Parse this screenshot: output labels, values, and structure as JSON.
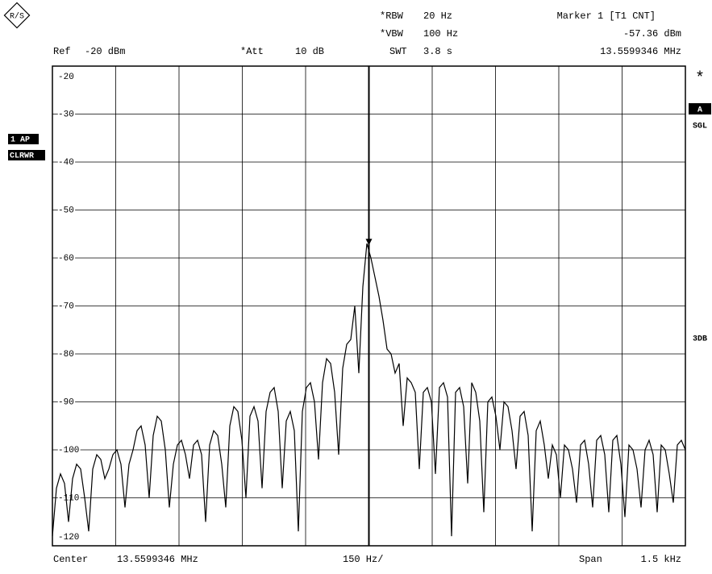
{
  "chart_data": {
    "type": "line",
    "header": {
      "rbw_label": "*RBW",
      "rbw": "20 Hz",
      "vbw_label": "*VBW",
      "vbw": "100 Hz",
      "marker_title": "Marker 1 [T1 CNT]",
      "marker_level_label": "-57.36 dBm",
      "marker_freq": "13.5599346 MHz",
      "ref_label": "Ref",
      "ref": "-20 dBm",
      "att_label": "*Att",
      "att": "10 dB",
      "swt_label": "SWT",
      "swt": "3.8 s"
    },
    "footer": {
      "center_label": "Center",
      "center": "13.5599346 MHz",
      "per_div": "150 Hz/",
      "span_label": "Span",
      "span": "1.5 kHz"
    },
    "side": {
      "trace": "1 AP",
      "mode": "CLRWR",
      "star": "*",
      "screen": "A",
      "sweep": "SGL",
      "note": "3DB"
    },
    "marker_level": -57.36,
    "ylim": [
      -120,
      -20
    ],
    "yticks": [
      -20,
      -30,
      -40,
      -50,
      -60,
      -70,
      -80,
      -90,
      -100,
      -110,
      -120
    ],
    "grid": true,
    "color": "#000000",
    "values": [
      -118,
      -108,
      -105,
      -107,
      -115,
      -106,
      -103,
      -104,
      -110,
      -117,
      -104,
      -101,
      -102,
      -106,
      -104,
      -101,
      -100,
      -103,
      -112,
      -103,
      -100,
      -96,
      -95,
      -99,
      -110,
      -97,
      -93,
      -94,
      -100,
      -112,
      -103,
      -99,
      -98,
      -101,
      -106,
      -99,
      -98,
      -101,
      -115,
      -99,
      -96,
      -97,
      -103,
      -112,
      -95,
      -91,
      -92,
      -98,
      -110,
      -93,
      -91,
      -94,
      -108,
      -92,
      -88,
      -87,
      -92,
      -108,
      -94,
      -92,
      -96,
      -117,
      -92,
      -87,
      -86,
      -90,
      -102,
      -86,
      -81,
      -82,
      -88,
      -101,
      -83,
      -78,
      -77,
      -70,
      -84,
      -66,
      -57,
      -60,
      -64,
      -68,
      -73,
      -79,
      -80,
      -84,
      -82,
      -95,
      -85,
      -86,
      -88,
      -104,
      -88,
      -87,
      -90,
      -105,
      -87,
      -86,
      -89,
      -118,
      -88,
      -87,
      -91,
      -107,
      -86,
      -88,
      -94,
      -113,
      -90,
      -89,
      -93,
      -100,
      -90,
      -91,
      -96,
      -104,
      -93,
      -92,
      -97,
      -117,
      -96,
      -94,
      -99,
      -106,
      -99,
      -101,
      -110,
      -99,
      -100,
      -104,
      -111,
      -99,
      -98,
      -103,
      -112,
      -98,
      -97,
      -101,
      -113,
      -98,
      -97,
      -103,
      -114,
      -99,
      -100,
      -104,
      -112,
      -100,
      -98,
      -101,
      -113,
      -99,
      -100,
      -105,
      -111,
      -99,
      -98,
      -100
    ]
  }
}
